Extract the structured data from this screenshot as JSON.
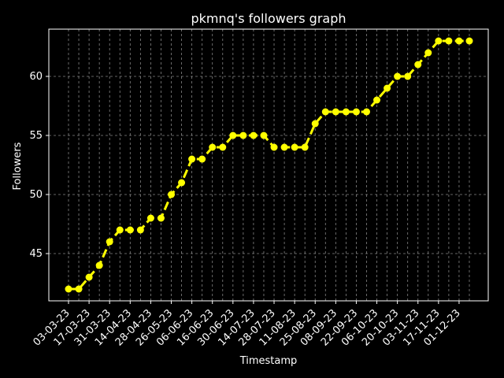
{
  "chart_data": {
    "type": "line",
    "title": "pkmnq's followers graph",
    "xlabel": "Timestamp",
    "ylabel": "Followers",
    "ylim": [
      41.0,
      64.0
    ],
    "yticks": [
      45,
      50,
      55,
      60
    ],
    "grid": true,
    "x_tick_labels": [
      "03-03-23",
      "17-03-23",
      "31-03-23",
      "14-04-23",
      "28-04-23",
      "26-05-23",
      "06-06-23",
      "16-06-23",
      "30-06-23",
      "14-07-23",
      "28-07-23",
      "11-08-23",
      "25-08-23",
      "08-09-23",
      "22-09-23",
      "06-10-23",
      "20-10-23",
      "03-11-23",
      "17-11-23",
      "01-12-23"
    ],
    "series": [
      {
        "color": "#ffff00",
        "line_style": "dashed",
        "values": [
          42,
          42,
          43,
          44,
          46,
          47,
          47,
          47,
          48,
          48,
          50,
          51,
          53,
          53,
          54,
          54,
          55,
          55,
          55,
          55,
          54,
          54,
          54,
          54,
          56,
          57,
          57,
          57,
          57,
          57,
          58,
          59,
          60,
          60,
          61,
          62,
          63,
          63,
          63,
          63
        ]
      }
    ]
  },
  "colors": {
    "background": "#000000",
    "axes": "#ffffff",
    "grid": "#b0b0b0",
    "line": "#ffff00"
  }
}
